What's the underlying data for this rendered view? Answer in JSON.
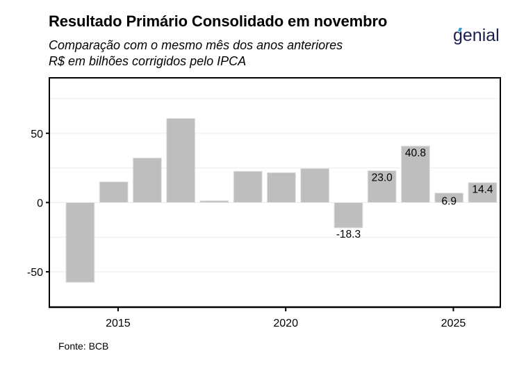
{
  "header": {
    "title": "Resultado Primário Consolidado em novembro",
    "subtitle_line1": "Comparação com o mesmo mês dos anos anteriores",
    "subtitle_line2": "R$ em bilhões corrigidos pelo IPCA",
    "logo_text": "genial"
  },
  "footer": {
    "caption": "Fonte: BCB"
  },
  "colors": {
    "bar": "#bebebe",
    "bar_outline": "#e6e6e6",
    "grid": "#ebebeb",
    "axis": "#000000",
    "logo": "#1b1f4d",
    "logo_accent": "#2d9cdb"
  },
  "chart_data": {
    "type": "bar",
    "title": "Resultado Primário Consolidado em novembro",
    "subtitle": "Comparação com o mesmo mês dos anos anteriores / R$ em bilhões corrigidos pelo IPCA",
    "xlabel": "",
    "ylabel": "",
    "categories": [
      "nov/2013",
      "nov/2014",
      "nov/2015",
      "nov/2016",
      "nov/2017",
      "nov/2018",
      "nov/2019",
      "nov/2020",
      "nov/2021",
      "nov/2022",
      "nov/2023",
      "nov/2024",
      "nov/2025"
    ],
    "x_decimal": [
      2013.87,
      2014.87,
      2015.87,
      2016.87,
      2017.87,
      2018.87,
      2019.87,
      2020.87,
      2021.87,
      2022.87,
      2023.87,
      2024.87,
      2025.87
    ],
    "values": [
      -57.6,
      15.0,
      32.2,
      60.7,
      1.3,
      22.6,
      21.6,
      24.6,
      -18.3,
      23.0,
      40.8,
      6.9,
      14.4
    ],
    "labeled_values": [
      {
        "index": 8,
        "label": "-18.3"
      },
      {
        "index": 9,
        "label": "23.0"
      },
      {
        "index": 10,
        "label": "40.8"
      },
      {
        "index": 11,
        "label": "6.9"
      },
      {
        "index": 12,
        "label": "14.4"
      }
    ],
    "x_ticks": [
      {
        "value": 2015,
        "label": "2015"
      },
      {
        "value": 2020,
        "label": "2020"
      },
      {
        "value": 2025,
        "label": "2025"
      }
    ],
    "y_ticks": [
      {
        "value": 50,
        "label": "50"
      },
      {
        "value": 0,
        "label": "0"
      },
      {
        "value": -50,
        "label": "-50"
      }
    ],
    "y_minor_grid": [
      75,
      25,
      -25
    ],
    "xlim": [
      2012.95,
      2026.4
    ],
    "ylim": [
      -75.5,
      90
    ],
    "grid": true,
    "legend": "none"
  }
}
